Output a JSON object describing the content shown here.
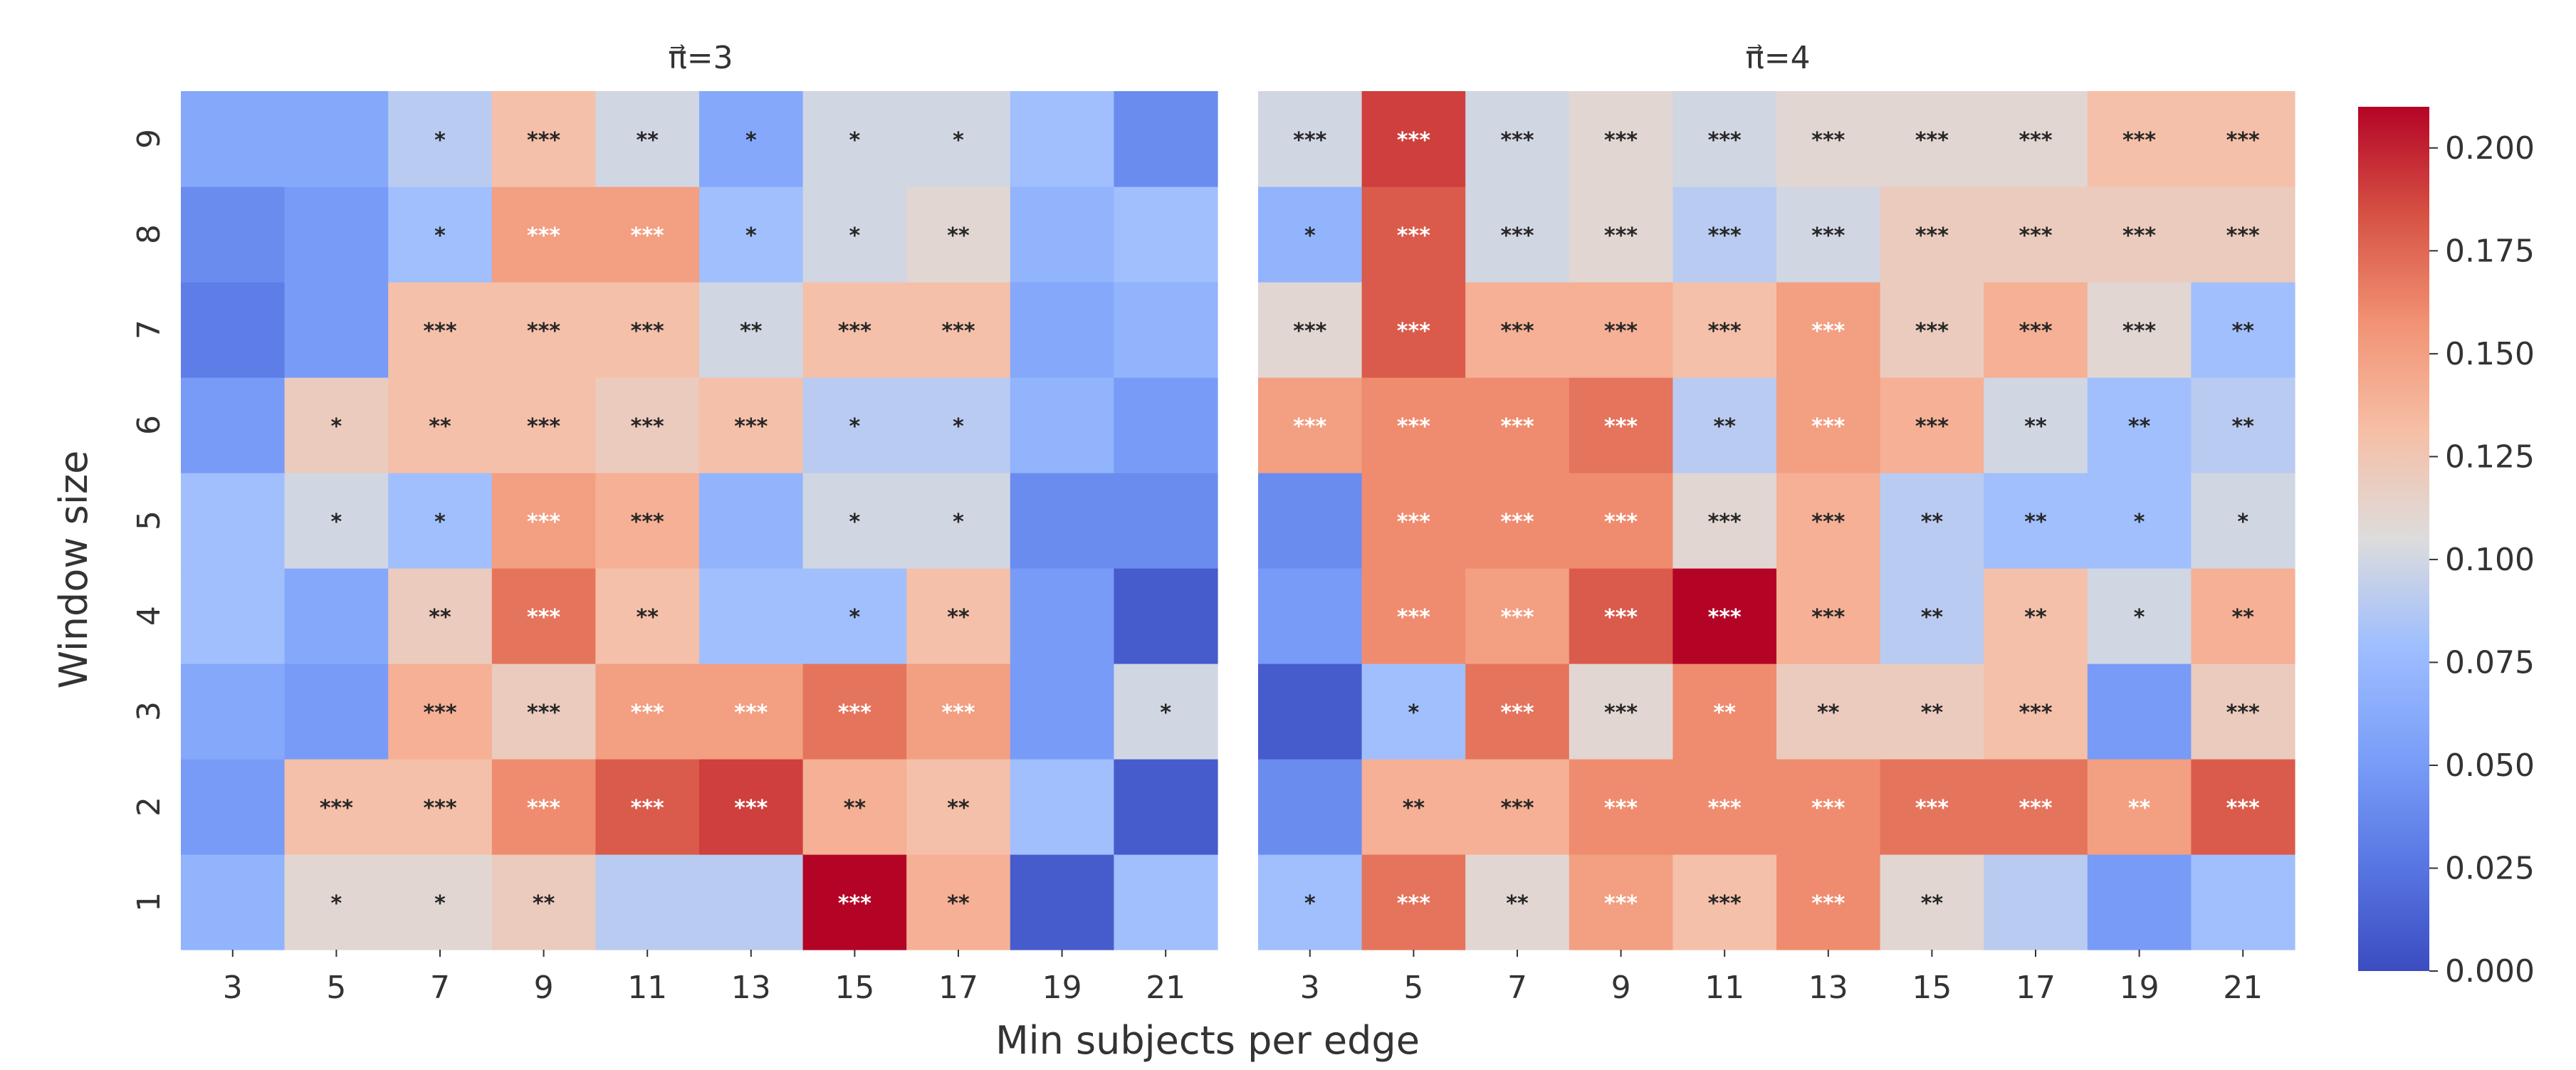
{
  "chart_data": {
    "type": "heatmap",
    "xlabel": "Min subjects per edge",
    "ylabel": "Window size",
    "x_categories": [
      "3",
      "5",
      "7",
      "9",
      "11",
      "13",
      "15",
      "17",
      "19",
      "21"
    ],
    "y_categories": [
      "1",
      "2",
      "3",
      "4",
      "5",
      "6",
      "7",
      "8",
      "9"
    ],
    "colormap": "coolwarm",
    "colorbar": {
      "vmin": 0.0,
      "vmax": 0.21,
      "ticks": [
        "0.000",
        "0.025",
        "0.050",
        "0.075",
        "0.100",
        "0.125",
        "0.150",
        "0.175",
        "0.200"
      ]
    },
    "panels": [
      {
        "title": "π⃗=3",
        "values": [
          [
            0.07,
            0.11,
            0.11,
            0.12,
            0.09,
            0.09,
            0.21,
            0.14,
            0.01,
            0.08
          ],
          [
            0.05,
            0.13,
            0.13,
            0.16,
            0.18,
            0.19,
            0.14,
            0.13,
            0.08,
            0.01
          ],
          [
            0.06,
            0.05,
            0.14,
            0.12,
            0.15,
            0.15,
            0.17,
            0.15,
            0.05,
            0.1
          ],
          [
            0.08,
            0.06,
            0.12,
            0.17,
            0.13,
            0.08,
            0.08,
            0.13,
            0.05,
            0.01
          ],
          [
            0.08,
            0.1,
            0.08,
            0.15,
            0.14,
            0.07,
            0.1,
            0.1,
            0.04,
            0.04
          ],
          [
            0.05,
            0.12,
            0.13,
            0.13,
            0.12,
            0.13,
            0.09,
            0.09,
            0.07,
            0.05
          ],
          [
            0.03,
            0.05,
            0.13,
            0.13,
            0.13,
            0.1,
            0.13,
            0.13,
            0.06,
            0.07
          ],
          [
            0.04,
            0.05,
            0.08,
            0.15,
            0.15,
            0.08,
            0.1,
            0.11,
            0.07,
            0.08
          ],
          [
            0.06,
            0.06,
            0.09,
            0.13,
            0.1,
            0.06,
            0.1,
            0.1,
            0.08,
            0.04
          ]
        ],
        "annotations": [
          [
            "",
            "*",
            "*",
            "**",
            "",
            "",
            "***",
            "**",
            "",
            ""
          ],
          [
            "",
            "***",
            "***",
            "***",
            "***",
            "***",
            "**",
            "**",
            "",
            ""
          ],
          [
            "",
            "",
            "***",
            "***",
            "***",
            "***",
            "***",
            "***",
            "",
            "*"
          ],
          [
            "",
            "",
            "**",
            "***",
            "**",
            "",
            "*",
            "**",
            "",
            ""
          ],
          [
            "",
            "*",
            "*",
            "***",
            "***",
            "",
            "*",
            "*",
            "",
            ""
          ],
          [
            "",
            "*",
            "**",
            "***",
            "***",
            "***",
            "*",
            "*",
            "",
            ""
          ],
          [
            "",
            "",
            "***",
            "***",
            "***",
            "**",
            "***",
            "***",
            "",
            ""
          ],
          [
            "",
            "",
            "*",
            "***",
            "***",
            "*",
            "*",
            "**",
            "",
            ""
          ],
          [
            "",
            "",
            "*",
            "***",
            "**",
            "*",
            "*",
            "*",
            "",
            ""
          ]
        ]
      },
      {
        "title": "π⃗=4",
        "values": [
          [
            0.08,
            0.17,
            0.11,
            0.15,
            0.13,
            0.16,
            0.11,
            0.09,
            0.05,
            0.08
          ],
          [
            0.04,
            0.14,
            0.14,
            0.16,
            0.16,
            0.16,
            0.17,
            0.17,
            0.15,
            0.18
          ],
          [
            0.01,
            0.08,
            0.17,
            0.11,
            0.16,
            0.12,
            0.12,
            0.13,
            0.05,
            0.12
          ],
          [
            0.05,
            0.16,
            0.15,
            0.18,
            0.21,
            0.14,
            0.09,
            0.13,
            0.1,
            0.14
          ],
          [
            0.04,
            0.16,
            0.16,
            0.16,
            0.11,
            0.14,
            0.09,
            0.08,
            0.08,
            0.1
          ],
          [
            0.15,
            0.16,
            0.16,
            0.17,
            0.09,
            0.15,
            0.14,
            0.1,
            0.08,
            0.09
          ],
          [
            0.11,
            0.18,
            0.14,
            0.14,
            0.13,
            0.15,
            0.12,
            0.14,
            0.11,
            0.08
          ],
          [
            0.07,
            0.18,
            0.1,
            0.11,
            0.09,
            0.1,
            0.12,
            0.12,
            0.12,
            0.12
          ],
          [
            0.1,
            0.19,
            0.1,
            0.11,
            0.1,
            0.11,
            0.11,
            0.11,
            0.13,
            0.13
          ]
        ],
        "annotations": [
          [
            "*",
            "***",
            "**",
            "***",
            "***",
            "***",
            "**",
            "",
            "",
            ""
          ],
          [
            "",
            "**",
            "***",
            "***",
            "***",
            "***",
            "***",
            "***",
            "**",
            "***"
          ],
          [
            "",
            "*",
            "***",
            "***",
            "**",
            "**",
            "**",
            "***",
            "",
            "***"
          ],
          [
            "",
            "***",
            "***",
            "***",
            "***",
            "***",
            "**",
            "**",
            "*",
            "**"
          ],
          [
            "",
            "***",
            "***",
            "***",
            "***",
            "***",
            "**",
            "**",
            "*",
            "*"
          ],
          [
            "***",
            "***",
            "***",
            "***",
            "**",
            "***",
            "***",
            "**",
            "**",
            "**"
          ],
          [
            "***",
            "***",
            "***",
            "***",
            "***",
            "***",
            "***",
            "***",
            "***",
            "**"
          ],
          [
            "*",
            "***",
            "***",
            "***",
            "***",
            "***",
            "***",
            "***",
            "***",
            "***"
          ],
          [
            "***",
            "***",
            "***",
            "***",
            "***",
            "***",
            "***",
            "***",
            "***",
            "***"
          ]
        ]
      }
    ]
  }
}
